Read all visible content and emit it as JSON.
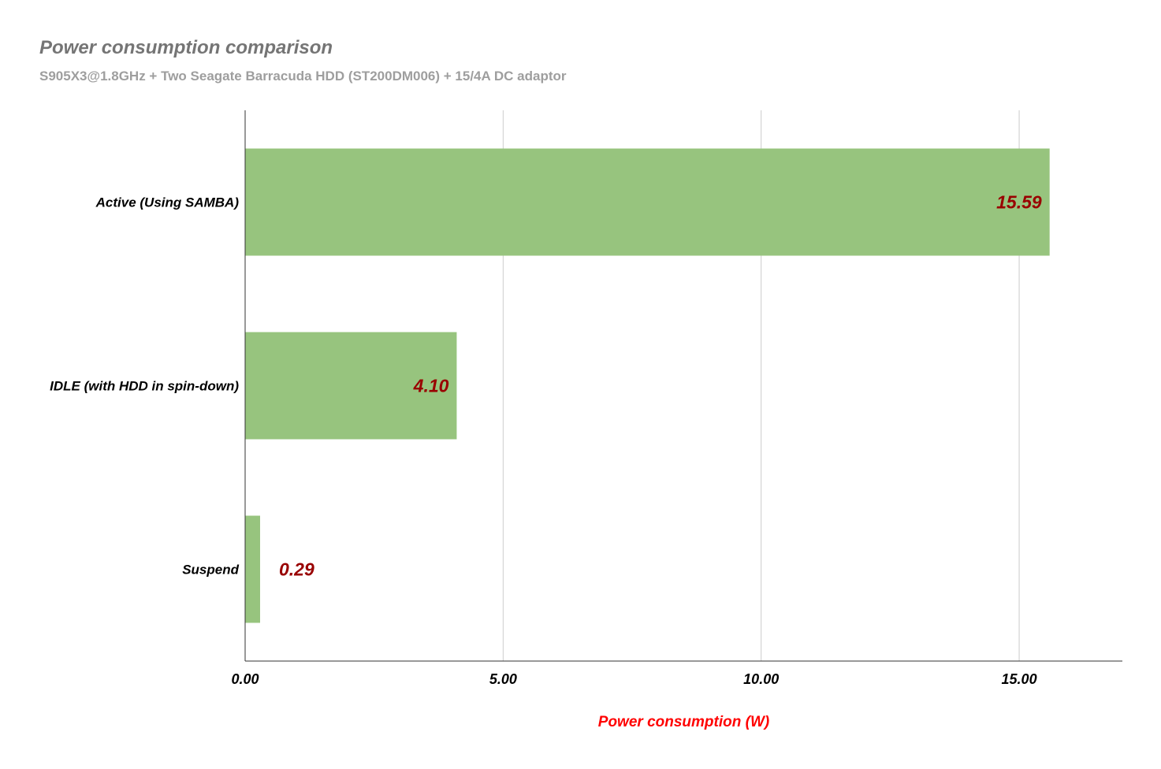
{
  "chart_data": {
    "type": "bar",
    "orientation": "horizontal",
    "title": "Power consumption comparison",
    "subtitle": "S905X3@1.8GHz + Two Seagate Barracuda HDD (ST200DM006) + 15/4A DC adaptor",
    "xlabel": "Power consumption (W)",
    "ylabel": "",
    "categories": [
      "Active (Using SAMBA)",
      "IDLE (with HDD in spin-down)",
      "Suspend"
    ],
    "values": [
      15.59,
      4.1,
      0.29
    ],
    "value_labels": [
      "15.59",
      "4.10",
      "0.29"
    ],
    "xlim": [
      0,
      17
    ],
    "xticks": [
      0,
      5,
      10,
      15
    ],
    "xtick_labels": [
      "0.00",
      "5.00",
      "10.00",
      "15.00"
    ],
    "grid": true,
    "legend": "none",
    "colors": {
      "bar": "#97c47e",
      "value_label": "#990000",
      "xlabel": "#ff0000",
      "title": "#757575",
      "subtitle": "#9e9e9e",
      "gridline": "#cccccc",
      "axis": "#333333",
      "tick_label": "#000000"
    }
  }
}
